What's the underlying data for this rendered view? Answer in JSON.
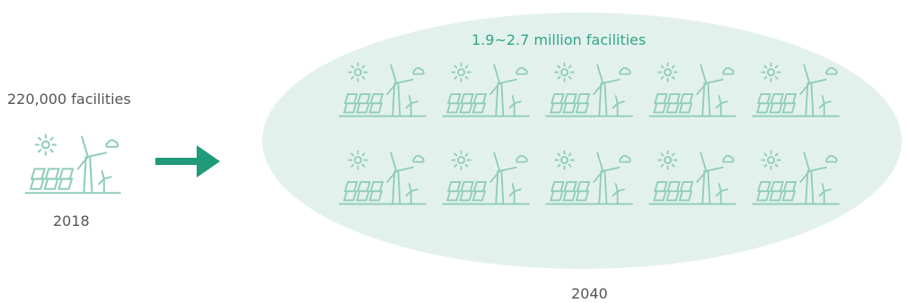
{
  "left": {
    "count_label": "220,000 facilities",
    "year": "2018"
  },
  "right": {
    "count_label": "1.9~2.7 million facilities",
    "year": "2040"
  },
  "icons": {
    "facility_icon": "solar-panel-and-wind-turbine-icon",
    "arrow_icon": "right-arrow-icon"
  },
  "colors": {
    "icon_color": "#8fcdb8",
    "accent": "#2fa58a",
    "ellipse_fill": "#e3f1ec",
    "arrow": "#1f9a7a"
  }
}
